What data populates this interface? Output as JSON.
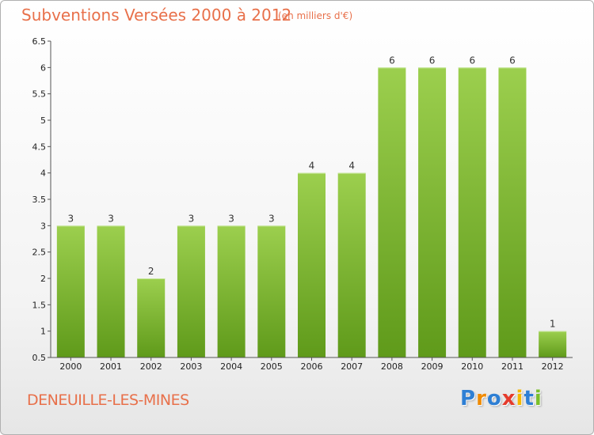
{
  "header": {
    "title": "Subventions Versées 2000 à 2012",
    "unit": "(en milliers d'€)"
  },
  "footer": {
    "town": "DENEUILLE-LES-MINES",
    "logo": "Proxiti",
    "logo_colors": [
      "#2e7fd4",
      "#f08a00",
      "#2e7fd4",
      "#e53b2c",
      "#f5b800",
      "#2e7fd4",
      "#7bbf2a"
    ]
  },
  "colors": {
    "bar_top": "#9ccf4e",
    "bar_bottom": "#5f9a1a",
    "text_accent": "#e8704a"
  },
  "chart_data": {
    "type": "bar",
    "categories": [
      "2000",
      "2001",
      "2002",
      "2003",
      "2004",
      "2005",
      "2006",
      "2007",
      "2008",
      "2009",
      "2010",
      "2011",
      "2012"
    ],
    "values": [
      3,
      3,
      2,
      3,
      3,
      3,
      4,
      4,
      6,
      6,
      6,
      6,
      1
    ],
    "data_labels": [
      "3",
      "3",
      "2",
      "3",
      "3",
      "3",
      "4",
      "4",
      "6",
      "6",
      "6",
      "6",
      "1"
    ],
    "yticks": [
      "0.5",
      "1",
      "1.5",
      "2",
      "2.5",
      "3",
      "3.5",
      "4",
      "4.5",
      "5",
      "5.5",
      "6",
      "6.5"
    ],
    "ylim": [
      0.5,
      6.5
    ],
    "grid": false,
    "title": "Subventions Versées 2000 à 2012",
    "xlabel": "",
    "ylabel": ""
  }
}
